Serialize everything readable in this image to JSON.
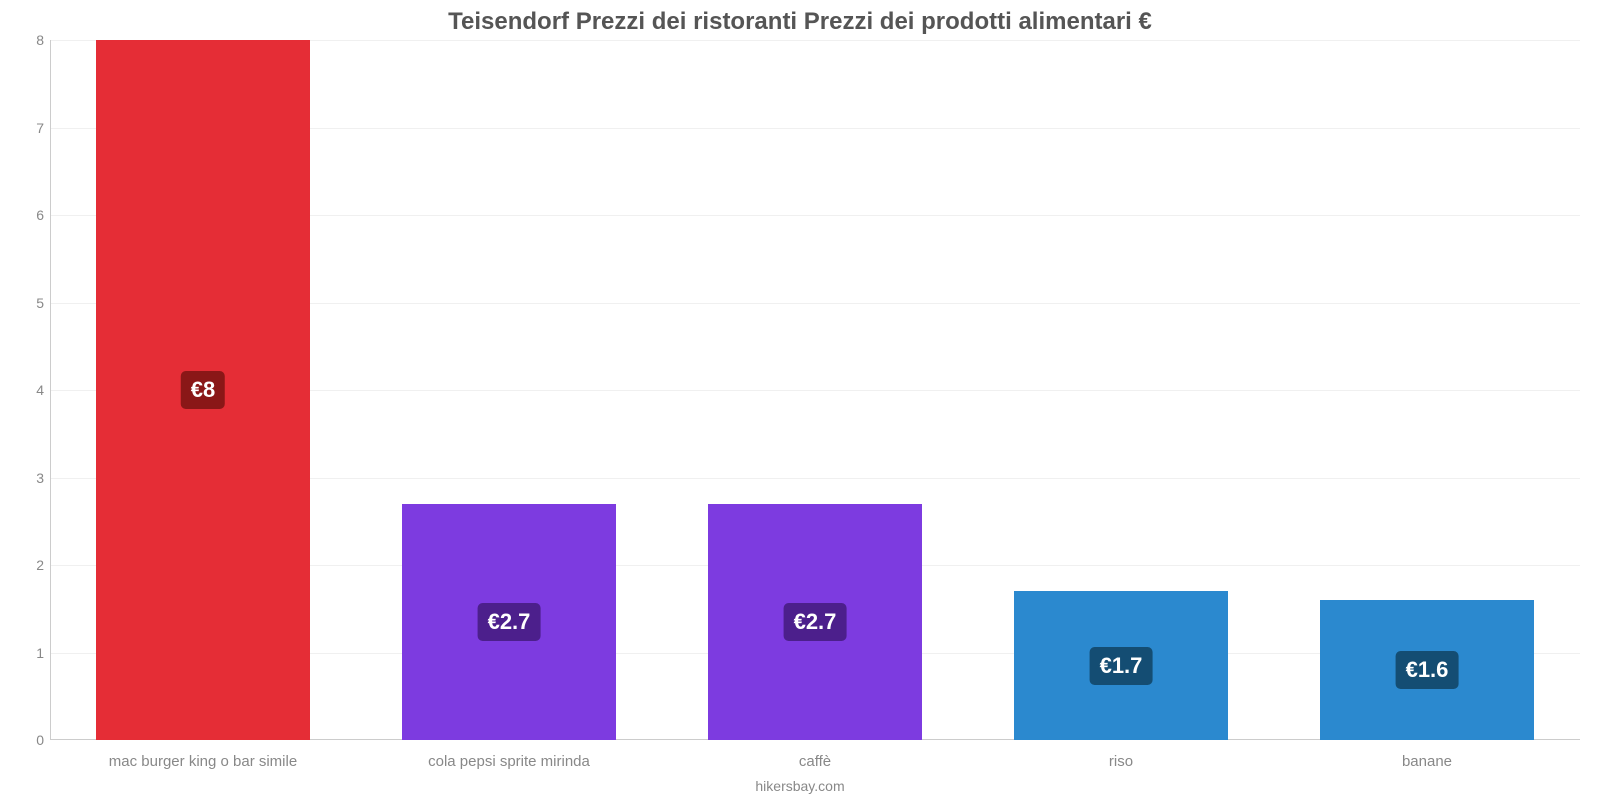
{
  "chart": {
    "type": "bar",
    "title": "Teisendorf Prezzi dei ristoranti Prezzi dei prodotti alimentari €",
    "title_color": "#555555",
    "title_fontsize": 24,
    "background_color": "#ffffff",
    "grid_color": "#f0f0f0",
    "axis_line_color": "#cccccc",
    "tick_color": "#888888",
    "xlabel_color": "#888888",
    "credit": "hikersbay.com",
    "credit_color": "#888888",
    "ylim": [
      0,
      8
    ],
    "yticks": [
      0,
      1,
      2,
      3,
      4,
      5,
      6,
      7,
      8
    ],
    "bar_width_pct": 70,
    "value_label_fontsize": 22,
    "categories": [
      "mac burger king o bar simile",
      "cola pepsi sprite mirinda",
      "caffè",
      "riso",
      "banane"
    ],
    "values": [
      8,
      2.7,
      2.7,
      1.7,
      1.6
    ],
    "value_labels": [
      "€8",
      "€2.7",
      "€2.7",
      "€1.7",
      "€1.6"
    ],
    "bar_colors": [
      "#e52d36",
      "#7d3be0",
      "#7d3be0",
      "#2b89cf",
      "#2b89cf"
    ],
    "badge_colors": [
      "#8a1717",
      "#4c1f8c",
      "#4c1f8c",
      "#144d73",
      "#144d73"
    ]
  }
}
